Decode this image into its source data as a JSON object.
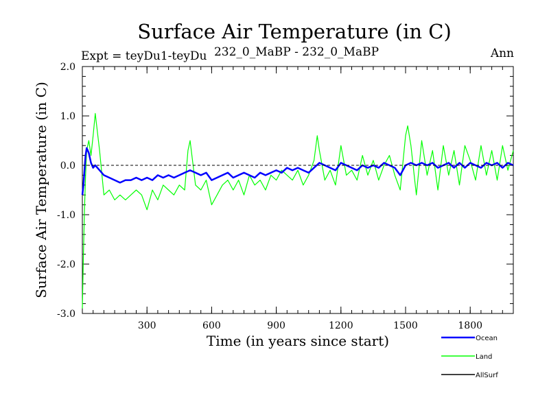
{
  "chart_data": {
    "type": "line",
    "title": "Surface Air Temperature (in C)",
    "subtitle_left": "Expt = teyDu1-teyDu",
    "subtitle_center": "232_0_MaBP - 232_0_MaBP",
    "subtitle_right": "Ann",
    "xlabel": "Time (in years since start)",
    "ylabel": "Surface Air Temperature (in C)",
    "xlim": [
      0,
      2000
    ],
    "ylim": [
      -3.0,
      2.0
    ],
    "x_ticks": [
      300,
      600,
      900,
      1200,
      1500,
      1800
    ],
    "x_tick_labels": [
      "300",
      "600",
      "900",
      "1200",
      "1500",
      "1800"
    ],
    "y_ticks": [
      2.0,
      1.0,
      0.0,
      -1.0,
      -2.0,
      -3.0
    ],
    "y_tick_labels": [
      "2.0",
      "1.0",
      "0.0",
      "-1.0",
      "-2.0",
      "-3.0"
    ],
    "zero_line": {
      "y": 0.0,
      "style": "dashed",
      "color": "#000000"
    },
    "legend_position": "bottom-right",
    "series": [
      {
        "name": "Land",
        "color": "#00ff00",
        "x": [
          0,
          5,
          10,
          15,
          20,
          30,
          40,
          50,
          60,
          80,
          100,
          125,
          150,
          175,
          200,
          225,
          250,
          275,
          300,
          325,
          350,
          375,
          400,
          425,
          450,
          475,
          490,
          500,
          525,
          550,
          575,
          600,
          625,
          650,
          675,
          700,
          725,
          750,
          775,
          800,
          825,
          850,
          875,
          900,
          925,
          950,
          975,
          1000,
          1025,
          1050,
          1075,
          1090,
          1100,
          1125,
          1150,
          1175,
          1200,
          1225,
          1250,
          1275,
          1300,
          1325,
          1350,
          1375,
          1400,
          1425,
          1450,
          1475,
          1500,
          1510,
          1525,
          1550,
          1575,
          1600,
          1625,
          1650,
          1675,
          1700,
          1725,
          1750,
          1775,
          1800,
          1825,
          1850,
          1875,
          1900,
          1925,
          1950,
          1975,
          2000
        ],
        "values": [
          -2.9,
          -1.8,
          -0.9,
          -0.2,
          0.3,
          0.5,
          0.2,
          0.6,
          1.05,
          0.3,
          -0.6,
          -0.5,
          -0.7,
          -0.6,
          -0.7,
          -0.6,
          -0.5,
          -0.6,
          -0.9,
          -0.5,
          -0.7,
          -0.4,
          -0.5,
          -0.6,
          -0.4,
          -0.5,
          0.3,
          0.5,
          -0.4,
          -0.5,
          -0.3,
          -0.8,
          -0.6,
          -0.4,
          -0.3,
          -0.5,
          -0.3,
          -0.6,
          -0.2,
          -0.4,
          -0.3,
          -0.5,
          -0.2,
          -0.3,
          -0.1,
          -0.2,
          -0.3,
          -0.1,
          -0.4,
          -0.2,
          0.1,
          0.6,
          0.3,
          -0.3,
          -0.1,
          -0.4,
          0.4,
          -0.2,
          -0.1,
          -0.3,
          0.2,
          -0.2,
          0.1,
          -0.3,
          0.0,
          0.2,
          -0.2,
          -0.5,
          0.6,
          0.8,
          0.4,
          -0.6,
          0.5,
          -0.2,
          0.3,
          -0.5,
          0.4,
          -0.2,
          0.3,
          -0.4,
          0.4,
          0.1,
          -0.3,
          0.4,
          -0.2,
          0.3,
          -0.3,
          0.4,
          -0.1,
          0.3
        ]
      },
      {
        "name": "Ocean",
        "color": "#0000ff",
        "x": [
          0,
          5,
          10,
          15,
          20,
          30,
          40,
          50,
          60,
          80,
          100,
          125,
          150,
          175,
          200,
          225,
          250,
          275,
          300,
          325,
          350,
          375,
          400,
          425,
          450,
          475,
          500,
          525,
          550,
          575,
          600,
          625,
          650,
          675,
          700,
          725,
          750,
          775,
          800,
          825,
          850,
          875,
          900,
          925,
          950,
          975,
          1000,
          1025,
          1050,
          1075,
          1100,
          1125,
          1150,
          1175,
          1200,
          1225,
          1250,
          1275,
          1300,
          1325,
          1350,
          1375,
          1400,
          1425,
          1450,
          1475,
          1500,
          1525,
          1550,
          1575,
          1600,
          1625,
          1650,
          1675,
          1700,
          1725,
          1750,
          1775,
          1800,
          1825,
          1850,
          1875,
          1900,
          1925,
          1950,
          1975,
          2000
        ],
        "values": [
          -0.6,
          -0.4,
          -0.1,
          0.2,
          0.35,
          0.25,
          0.05,
          -0.05,
          0.0,
          -0.1,
          -0.2,
          -0.25,
          -0.3,
          -0.35,
          -0.3,
          -0.3,
          -0.25,
          -0.3,
          -0.25,
          -0.3,
          -0.2,
          -0.25,
          -0.2,
          -0.25,
          -0.2,
          -0.15,
          -0.1,
          -0.15,
          -0.2,
          -0.15,
          -0.3,
          -0.25,
          -0.2,
          -0.15,
          -0.25,
          -0.2,
          -0.15,
          -0.2,
          -0.25,
          -0.15,
          -0.2,
          -0.15,
          -0.1,
          -0.15,
          -0.05,
          -0.1,
          -0.05,
          -0.1,
          -0.15,
          -0.05,
          0.05,
          0.0,
          -0.05,
          -0.1,
          0.05,
          0.0,
          -0.05,
          -0.1,
          0.0,
          -0.05,
          0.0,
          -0.05,
          0.05,
          0.0,
          -0.05,
          -0.2,
          0.0,
          0.05,
          0.0,
          0.05,
          0.0,
          0.05,
          -0.05,
          0.0,
          0.05,
          -0.05,
          0.05,
          -0.05,
          0.05,
          0.0,
          -0.05,
          0.05,
          0.0,
          0.05,
          -0.05,
          0.05,
          0.0
        ]
      },
      {
        "name": "AllSurf",
        "color": "#000000",
        "x": [],
        "values": []
      }
    ]
  }
}
